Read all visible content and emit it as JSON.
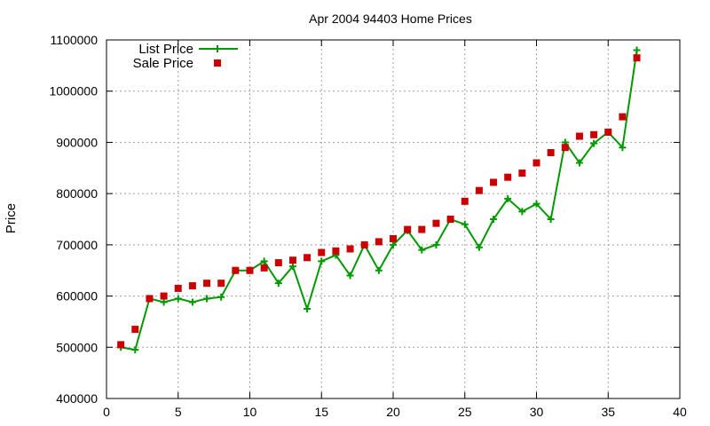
{
  "chart_data": {
    "type": "line",
    "title": "Apr 2004 94403 Home Prices",
    "xlabel": "",
    "ylabel": "Price",
    "xlim": [
      0,
      40
    ],
    "ylim": [
      400000,
      1100000
    ],
    "x_ticks": [
      0,
      5,
      10,
      15,
      20,
      25,
      30,
      35,
      40
    ],
    "y_ticks": [
      400000,
      500000,
      600000,
      700000,
      800000,
      900000,
      1000000,
      1100000
    ],
    "x_tick_labels": [
      "0",
      "5",
      "10",
      "15",
      "20",
      "25",
      "30",
      "35",
      "40"
    ],
    "y_tick_labels": [
      "400000",
      "500000",
      "600000",
      "700000",
      "800000",
      "900000",
      "1000000",
      "1100000"
    ],
    "grid": true,
    "legend_position": "top-left",
    "series": [
      {
        "name": "List Price",
        "style": "line-plus",
        "color": "#009900",
        "x": [
          1,
          2,
          3,
          4,
          5,
          6,
          7,
          8,
          9,
          10,
          11,
          12,
          13,
          14,
          15,
          16,
          17,
          18,
          19,
          20,
          21,
          22,
          23,
          24,
          25,
          26,
          27,
          28,
          29,
          30,
          31,
          32,
          33,
          34,
          35,
          36,
          37
        ],
        "values": [
          500000,
          495000,
          595000,
          588000,
          595000,
          588000,
          595000,
          598000,
          650000,
          650000,
          668000,
          625000,
          658000,
          575000,
          668000,
          680000,
          640000,
          700000,
          650000,
          700000,
          728000,
          690000,
          700000,
          750000,
          740000,
          695000,
          750000,
          790000,
          765000,
          780000,
          750000,
          900000,
          860000,
          898000,
          920000,
          890000,
          1080000
        ]
      },
      {
        "name": "Sale Price",
        "style": "square",
        "color": "#cc0000",
        "x": [
          1,
          2,
          3,
          4,
          5,
          6,
          7,
          8,
          9,
          10,
          11,
          12,
          13,
          14,
          15,
          16,
          17,
          18,
          19,
          20,
          21,
          22,
          23,
          24,
          25,
          26,
          27,
          28,
          29,
          30,
          31,
          32,
          33,
          34,
          35,
          36,
          37
        ],
        "values": [
          505000,
          535000,
          595000,
          600000,
          615000,
          620000,
          625000,
          625000,
          650000,
          650000,
          655000,
          665000,
          670000,
          675000,
          685000,
          688000,
          692000,
          700000,
          706000,
          712000,
          730000,
          730000,
          742000,
          750000,
          785000,
          806000,
          822000,
          832000,
          840000,
          860000,
          880000,
          890000,
          912000,
          915000,
          920000,
          950000,
          1065000
        ]
      }
    ]
  }
}
